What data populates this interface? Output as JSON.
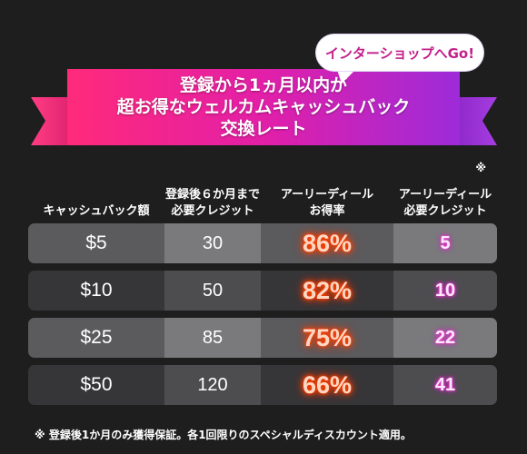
{
  "banner": {
    "lines": [
      "登録から1ヵ月以内が",
      "超お得なウェルカムキャッシュバック",
      "交換レート"
    ],
    "colors": {
      "ribbon_left": "#ff2a7a",
      "ribbon_right": "#9d2bd9"
    }
  },
  "shop_link": {
    "label": "インターショップへGo!"
  },
  "table": {
    "headers": [
      {
        "lines": [
          "キャッシュバック額"
        ]
      },
      {
        "lines": [
          "登録後６か月まで",
          "必要クレジット"
        ]
      },
      {
        "lines": [
          "アーリーディール",
          "お得率"
        ]
      },
      {
        "lines": [
          "アーリーディール",
          "必要クレジット"
        ],
        "mark": "※"
      }
    ],
    "rows": [
      {
        "cashback": "$5",
        "credits_6m": "30",
        "rate": "86%",
        "early_credits": "5"
      },
      {
        "cashback": "$10",
        "credits_6m": "50",
        "rate": "82%",
        "early_credits": "10"
      },
      {
        "cashback": "$25",
        "credits_6m": "85",
        "rate": "75%",
        "early_credits": "22"
      },
      {
        "cashback": "$50",
        "credits_6m": "120",
        "rate": "66%",
        "early_credits": "41"
      }
    ]
  },
  "footnote": "※ 登録後1か月のみ獲得保証。各1回限りのスペシャルディスカウント適用。"
}
